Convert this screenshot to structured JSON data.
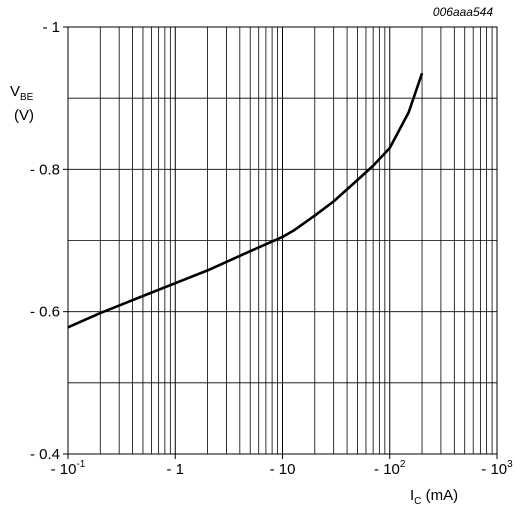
{
  "chart_data": {
    "type": "line",
    "figure_code": "006aaa544",
    "ylabel": {
      "main": "V",
      "sub": "BE",
      "unit": "(V)"
    },
    "xlabel": {
      "main": "I",
      "sub": "C",
      "unit": " (mA)"
    },
    "x_scale": "log",
    "xlim": [
      -0.1,
      -1000
    ],
    "ylim": [
      -0.4,
      -1.0
    ],
    "grid": true,
    "x_ticks": [
      {
        "value": -0.1,
        "base": "- 10",
        "exp": "-1"
      },
      {
        "value": -1,
        "base": "- 1",
        "exp": ""
      },
      {
        "value": -10,
        "base": "- 10",
        "exp": ""
      },
      {
        "value": -100,
        "base": "- 10",
        "exp": "2"
      },
      {
        "value": -1000,
        "base": "- 10",
        "exp": "3"
      }
    ],
    "y_ticks": [
      {
        "value": -0.4,
        "label": "- 0.4"
      },
      {
        "value": -0.6,
        "label": "- 0.6"
      },
      {
        "value": -0.8,
        "label": "- 0.8"
      },
      {
        "value": -1.0,
        "label": "- 1"
      }
    ],
    "series": [
      {
        "color": "#000000",
        "x": [
          -0.1,
          -0.2,
          -0.5,
          -1,
          -2,
          -5,
          -10,
          -13,
          -20,
          -30,
          -50,
          -70,
          -100,
          -150,
          -200
        ],
        "y": [
          -0.578,
          -0.598,
          -0.622,
          -0.64,
          -0.658,
          -0.685,
          -0.705,
          -0.715,
          -0.735,
          -0.755,
          -0.785,
          -0.805,
          -0.83,
          -0.88,
          -0.935
        ]
      }
    ]
  }
}
